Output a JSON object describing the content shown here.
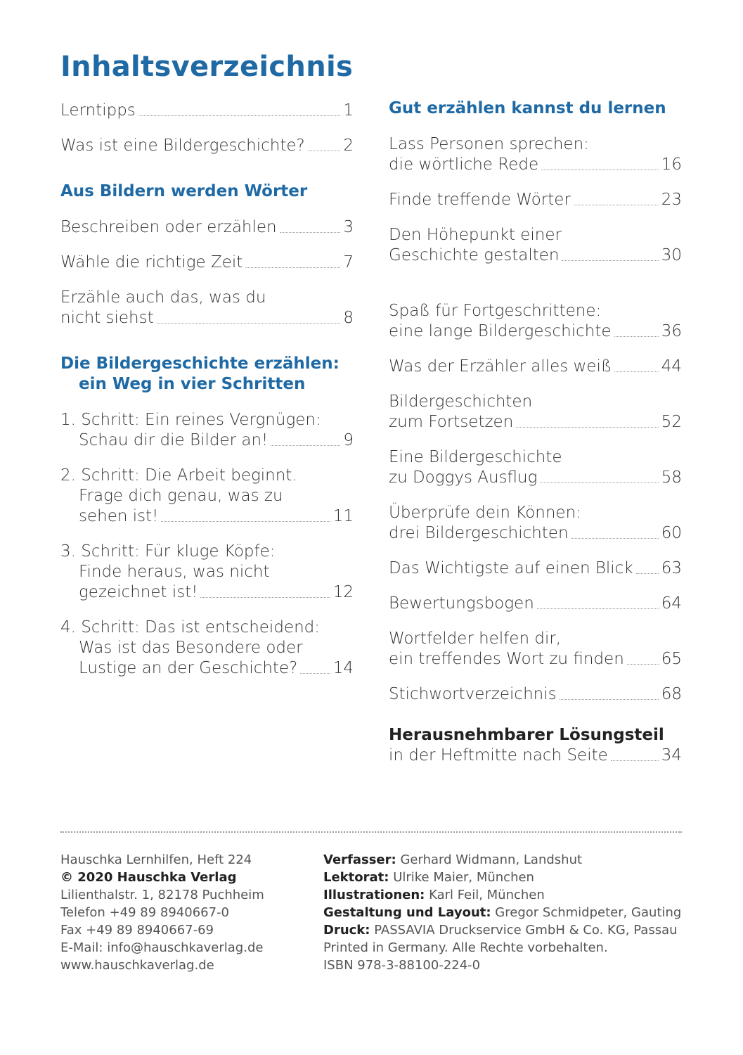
{
  "title": "Inhaltsverzeichnis",
  "columns": [
    {
      "groups": [
        {
          "entries": [
            {
              "lines": [
                "Lerntipps"
              ],
              "page": 1
            },
            {
              "lines": [
                "Was ist eine Bildergeschichte?"
              ],
              "page": 2
            }
          ]
        },
        {
          "heading": [
            "Aus Bildern werden Wörter"
          ],
          "entries": [
            {
              "lines": [
                "Beschreiben oder erzählen"
              ],
              "page": 3
            },
            {
              "lines": [
                "Wähle die richtige Zeit"
              ],
              "page": 7
            },
            {
              "lines": [
                "Erzähle auch das, was du",
                "nicht siehst"
              ],
              "page": 8
            }
          ]
        },
        {
          "heading": [
            "Die Bildergeschichte erzählen:",
            "ein Weg in vier Schritten"
          ],
          "entries": [
            {
              "lines": [
                "1. Schritt: Ein reines Vergnügen:",
                "Schau dir die Bilder an!"
              ],
              "page": 9
            },
            {
              "lines": [
                "2. Schritt: Die Arbeit beginnt.",
                "Frage dich genau, was zu",
                "sehen ist!"
              ],
              "page": 11
            },
            {
              "lines": [
                "3. Schritt: Für kluge Köpfe:",
                "Finde heraus, was nicht",
                "gezeichnet ist!"
              ],
              "page": 12
            },
            {
              "lines": [
                "4. Schritt: Das ist entscheidend:",
                "Was ist das Besondere oder",
                "Lustige an der Geschichte?"
              ],
              "page": 14
            }
          ]
        }
      ]
    },
    {
      "groups": [
        {
          "heading": [
            "Gut erzählen kannst du lernen"
          ],
          "entries": [
            {
              "lines": [
                "Lass Personen sprechen:",
                "die wörtliche Rede"
              ],
              "page": 16
            },
            {
              "lines": [
                "Finde treffende Wörter"
              ],
              "page": 23
            },
            {
              "lines": [
                "Den Höhepunkt einer",
                "Geschichte gestalten"
              ],
              "page": 30
            }
          ]
        },
        {
          "entries": [
            {
              "lines": [
                "Spaß für Fortgeschrittene:",
                "eine lange Bildergeschichte"
              ],
              "page": 36
            },
            {
              "lines": [
                "Was der Erzähler alles weiß"
              ],
              "page": 44
            },
            {
              "lines": [
                "Bildergeschichten",
                "zum Fortsetzen"
              ],
              "page": 52
            },
            {
              "lines": [
                "Eine Bildergeschichte",
                "zu Doggys Ausflug"
              ],
              "page": 58
            },
            {
              "lines": [
                "Überprüfe dein Können:",
                "drei Bildergeschichten"
              ],
              "page": 60
            },
            {
              "lines": [
                "Das Wichtigste auf einen Blick"
              ],
              "page": 63
            },
            {
              "lines": [
                "Bewertungsbogen"
              ],
              "page": 64
            },
            {
              "lines": [
                "Wortfelder helfen dir,",
                "ein treffendes Wort zu finden"
              ],
              "page": 65
            },
            {
              "lines": [
                "Stichwortverzeichnis"
              ],
              "page": 68
            }
          ]
        },
        {
          "entries": [
            {
              "lines": [
                "Herausnehmbarer Lösungsteil",
                "in der Heftmitte nach Seite"
              ],
              "page": 34
            }
          ]
        }
      ]
    }
  ],
  "footer": {
    "left": [
      "Hauschka Lernhilfen, Heft 224",
      "© 2020 Hauschka Verlag",
      "Lilienthalstr. 1, 82178 Puchheim",
      "Telefon +49 89 8940667-0",
      "Fax +49 89 8940667-69",
      "E-Mail: info@hauschkaverlag.de",
      "www.hauschkaverlag.de"
    ],
    "right": [
      {
        "label": "Verfasser:",
        "text": "Gerhard Widmann, Landshut"
      },
      {
        "label": "Lektorat:",
        "text": "Ulrike Maier, München"
      },
      {
        "label": "Illustrationen:",
        "text": "Karl Feil, München"
      },
      {
        "label": "Gestaltung und Layout:",
        "text": "Gregor Schmidpeter, Gauting"
      },
      {
        "label": "Druck:",
        "text": "PASSAVIA Druckservice GmbH & Co. KG, Passau"
      },
      {
        "text": "Printed in Germany. Alle Rechte vorbehalten."
      },
      {
        "text": "ISBN 978-3-88100-224-0"
      }
    ]
  }
}
